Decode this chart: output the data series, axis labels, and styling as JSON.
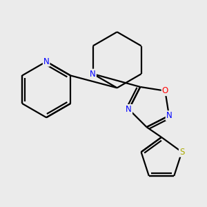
{
  "background_color": "#ebebeb",
  "bond_color": "#000000",
  "atom_colors": {
    "N": "#0000ff",
    "O": "#ff0000",
    "S": "#aaaa00",
    "C": "#000000"
  },
  "figsize": [
    3.0,
    3.0
  ],
  "dpi": 100
}
